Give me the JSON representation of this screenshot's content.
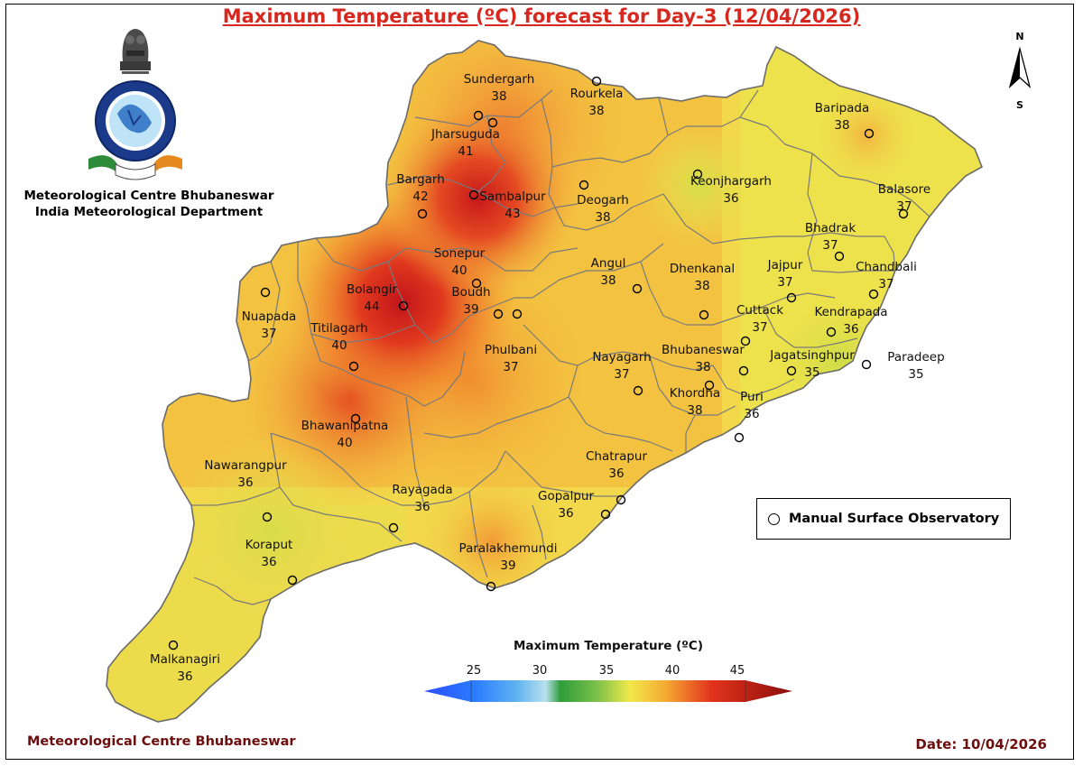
{
  "title": "Maximum Temperature (ºC) forecast for Day-3 (12/04/2026)",
  "organization": {
    "line1": "Meteorological Centre Bhubaneswar",
    "line2": "India Meteorological Department",
    "logo_text": "भारत मौसम विज्ञान विभाग INDIA METEOROLOGICAL DEPARTMENT"
  },
  "compass": {
    "north": "N",
    "south": "S"
  },
  "legend": {
    "label": "Manual Surface Observatory"
  },
  "colorbar": {
    "title": "Maximum Temperature (ºC)",
    "ticks": [
      "25",
      "30",
      "35",
      "40",
      "45"
    ],
    "colors": [
      "#2b4dff",
      "#40a0ff",
      "#a8d8f0",
      "#2e9e3a",
      "#7cc04a",
      "#f2e94a",
      "#f5a631",
      "#e2331c",
      "#8b0d0d"
    ]
  },
  "stations": [
    {
      "name": "Sundergarh",
      "temp": "38"
    },
    {
      "name": "Rourkela",
      "temp": "38"
    },
    {
      "name": "Jharsuguda",
      "temp": "41"
    },
    {
      "name": "Bargarh",
      "temp": "42"
    },
    {
      "name": "Sambalpur",
      "temp": "43"
    },
    {
      "name": "Deogarh",
      "temp": "38"
    },
    {
      "name": "Keonjhargarh",
      "temp": "36"
    },
    {
      "name": "Baripada",
      "temp": "38"
    },
    {
      "name": "Balasore",
      "temp": "37"
    },
    {
      "name": "Bhadrak",
      "temp": "37"
    },
    {
      "name": "Chandbali",
      "temp": "37"
    },
    {
      "name": "Sonepur",
      "temp": "40"
    },
    {
      "name": "Bolangir",
      "temp": "44"
    },
    {
      "name": "Boudh",
      "temp": "39"
    },
    {
      "name": "Angul",
      "temp": "38"
    },
    {
      "name": "Dhenkanal",
      "temp": "38"
    },
    {
      "name": "Jajpur",
      "temp": "37"
    },
    {
      "name": "Cuttack",
      "temp": "37"
    },
    {
      "name": "Kendrapada",
      "temp": "36"
    },
    {
      "name": "Nuapada",
      "temp": "37"
    },
    {
      "name": "Titilagarh",
      "temp": "40"
    },
    {
      "name": "Phulbani",
      "temp": "37"
    },
    {
      "name": "Nayagarh",
      "temp": "37"
    },
    {
      "name": "Bhubaneswar",
      "temp": "38"
    },
    {
      "name": "Jagatsinghpur",
      "temp": "35"
    },
    {
      "name": "Paradeep",
      "temp": "35"
    },
    {
      "name": "Khordha",
      "temp": "38"
    },
    {
      "name": "Puri",
      "temp": "36"
    },
    {
      "name": "Bhawanipatna",
      "temp": "40"
    },
    {
      "name": "Nawarangpur",
      "temp": "36"
    },
    {
      "name": "Chatrapur",
      "temp": "36"
    },
    {
      "name": "Rayagada",
      "temp": "36"
    },
    {
      "name": "Gopalpur",
      "temp": "36"
    },
    {
      "name": "Koraput",
      "temp": "36"
    },
    {
      "name": "Paralakhemundi",
      "temp": "39"
    },
    {
      "name": "Malkanagiri",
      "temp": "36"
    }
  ],
  "footer": {
    "left": "Meteorological Centre Bhubaneswar",
    "right": "Date: 10/04/2026"
  }
}
